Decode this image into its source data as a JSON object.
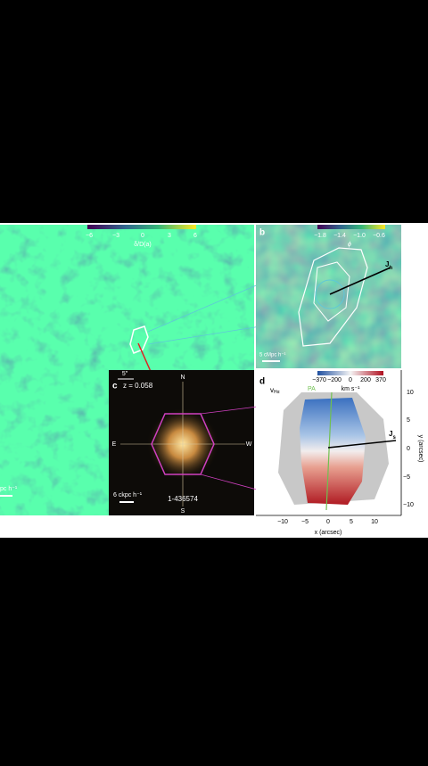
{
  "panel_a": {
    "colorbar_ticks": [
      "−6",
      "−3",
      "0",
      "3",
      "6"
    ],
    "colorbar_label": "δ/D(a)",
    "scale_bar": "pc h⁻¹"
  },
  "panel_b": {
    "letter": "b",
    "colorbar_ticks": [
      "−1.8",
      "−1.4",
      "−1.0",
      "−0.6"
    ],
    "colorbar_label": "ϕ",
    "vector_label": "J",
    "vector_sub": "h",
    "scale_bar": "5 cMpc h⁻¹"
  },
  "panel_c": {
    "letter": "c",
    "redshift": "z = 0.058",
    "angle_bar": "5″",
    "compass": {
      "north": "N",
      "east": "E",
      "west": "W",
      "south": "S"
    },
    "scale_bar": "6 ckpc h⁻¹",
    "galaxy_id": "1-436574"
  },
  "panel_d": {
    "letter": "d",
    "quantity": "v",
    "quantity_sub": "Hα",
    "colorbar_ticks": [
      "−370",
      "−200",
      "0",
      "200",
      "370"
    ],
    "colorbar_unit": "km s⁻¹",
    "pa_label": "PA",
    "vector_label": "J",
    "vector_sub": "s",
    "x_ticks": [
      "−10",
      "−5",
      "0",
      "5",
      "10"
    ],
    "x_label": "x (arcsec)",
    "y_ticks": [
      "10",
      "5",
      "0",
      "−5",
      "−10"
    ],
    "y_label": "y (arcsec)"
  }
}
